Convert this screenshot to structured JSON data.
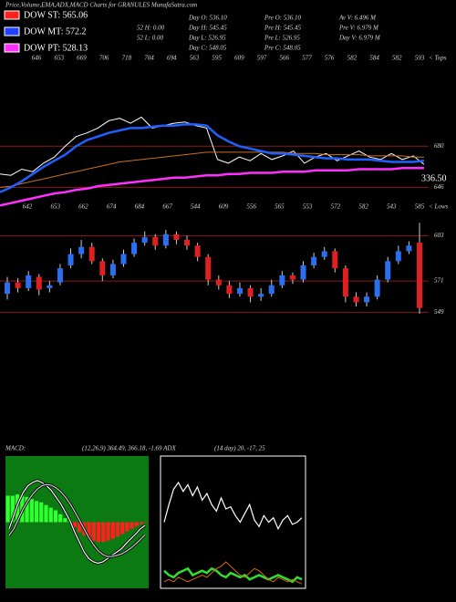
{
  "header": {
    "title": "Price,Volume,EMA,ADX,MACD Charts for GRANULES MunafaSutra.com",
    "legend": [
      {
        "label": "DOW ST: 565.06",
        "color": "#ff2020"
      },
      {
        "label": "DOW MT: 572.2",
        "color": "#2040ff"
      },
      {
        "label": "DOW PT: 528.13",
        "color": "#ff30ff"
      }
    ],
    "stats": [
      [
        "52 H: 0.00",
        "52 L: 0.00"
      ],
      [
        "Day O: 536.10",
        "Day H: 545.45",
        "Day L: 526.95",
        "Day C: 548.05"
      ],
      [
        "Pre O: 536.10",
        "Pre H: 545.45",
        "Pre L: 526.95",
        "Pre C: 548.05"
      ],
      [
        "Av V: 6.496 M",
        "Pre V: 6.979 M",
        "Day V: 6.979 M"
      ]
    ],
    "macd_label": "MACD:",
    "macd_params": "(12,26,9) 364.49, 366.18, -1.69 ADX",
    "adx_params": "(14 day) 20, -17, 25"
  },
  "chart_data": [
    {
      "type": "line",
      "ylim": [
        629,
        748
      ],
      "yticks": [
        646,
        680
      ],
      "tick_color": "#8b1a1a",
      "annotation": "336.50",
      "tops": [
        646,
        653,
        669,
        706,
        718,
        704,
        694,
        563,
        595,
        609,
        597,
        566,
        577,
        576,
        582,
        584,
        582,
        593
      ],
      "tops_label": "< Tops",
      "lows": [
        642,
        653,
        662,
        674,
        684,
        667,
        544,
        609,
        556,
        565,
        553,
        572,
        582,
        543,
        585
      ],
      "lows_label": "< Lows",
      "series": [
        {
          "color": "#ffffff",
          "width": 1,
          "values": [
            657,
            656,
            661,
            659,
            666,
            671,
            680,
            688,
            691,
            695,
            701,
            703,
            699,
            704,
            695,
            697,
            699,
            700,
            697,
            695,
            669,
            666,
            671,
            668,
            674,
            669,
            672,
            676,
            666,
            671,
            674,
            668,
            672,
            676,
            671,
            669,
            674,
            669,
            672,
            665
          ]
        },
        {
          "color": "#c87020",
          "width": 1,
          "values": [
            646,
            647,
            649,
            651,
            653,
            655,
            657,
            659,
            661,
            663,
            665,
            667,
            668,
            669,
            670,
            671,
            672,
            673,
            674,
            675,
            675,
            675,
            675,
            675,
            675,
            675,
            675,
            674,
            674,
            674,
            673,
            673,
            673,
            673,
            672,
            672,
            672,
            672,
            671,
            671
          ]
        },
        {
          "color": "#ff30ff",
          "width": 2.5,
          "values": [
            631,
            633,
            635,
            637,
            639,
            641,
            642,
            644,
            645,
            647,
            648,
            649,
            650,
            651,
            652,
            653,
            654,
            654,
            655,
            656,
            656,
            657,
            657,
            658,
            658,
            658,
            659,
            659,
            659,
            660,
            660,
            660,
            660,
            661,
            661,
            661,
            661,
            662,
            662,
            662
          ]
        },
        {
          "color": "#2060ff",
          "width": 2.5,
          "values": [
            642,
            646,
            651,
            657,
            663,
            668,
            673,
            680,
            685,
            688,
            691,
            693,
            695,
            695,
            696,
            697,
            697,
            698,
            698,
            697,
            689,
            684,
            680,
            678,
            676,
            674,
            674,
            673,
            672,
            671,
            670,
            670,
            669,
            669,
            669,
            668,
            667,
            667,
            667,
            668
          ]
        }
      ]
    },
    {
      "type": "candlestick",
      "ylim": [
        528,
        618
      ],
      "yticks": [
        549,
        571,
        603
      ],
      "tick_color": "#8b1a1a",
      "up_color": "#2a6ff0",
      "down_color": "#e02020",
      "open": [
        562,
        570,
        566,
        574,
        566,
        570,
        582,
        590,
        595,
        585,
        575,
        583,
        590,
        598,
        602,
        596,
        604,
        600,
        596,
        588,
        572,
        568,
        562,
        566,
        560,
        562,
        568,
        575,
        572,
        582,
        588,
        592,
        580,
        560,
        556,
        560,
        572,
        585,
        592,
        598
      ],
      "high": [
        574,
        573,
        578,
        576,
        571,
        583,
        594,
        600,
        598,
        587,
        586,
        593,
        601,
        606,
        604,
        607,
        606,
        603,
        598,
        590,
        575,
        571,
        570,
        568,
        566,
        572,
        578,
        577,
        585,
        591,
        595,
        594,
        582,
        563,
        563,
        575,
        588,
        596,
        599,
        612
      ],
      "low": [
        558,
        563,
        564,
        561,
        563,
        568,
        580,
        587,
        583,
        571,
        573,
        581,
        588,
        596,
        593,
        594,
        597,
        593,
        585,
        568,
        565,
        559,
        560,
        556,
        557,
        560,
        566,
        569,
        570,
        580,
        586,
        577,
        556,
        553,
        553,
        558,
        570,
        583,
        590,
        548
      ],
      "close": [
        570,
        566,
        575,
        565,
        568,
        580,
        590,
        595,
        585,
        575,
        583,
        590,
        598,
        602,
        596,
        604,
        600,
        596,
        588,
        572,
        568,
        562,
        566,
        560,
        562,
        568,
        575,
        572,
        582,
        588,
        592,
        580,
        560,
        556,
        560,
        572,
        585,
        592,
        596,
        552
      ]
    },
    {
      "type": "macd",
      "ylim": [
        -10,
        10
      ],
      "background": "#0b7a12",
      "histogram": {
        "up_color": "#30ff30",
        "down_color": "#ff2020",
        "values": [
          4,
          4,
          4.2,
          4,
          3.8,
          3.5,
          3.2,
          3,
          2.6,
          2.2,
          1.8,
          1.2,
          0.6,
          0.2,
          -0.8,
          -1.5,
          -2,
          -2.5,
          -2.8,
          -3,
          -3,
          -2.8,
          -2.5,
          -2.2,
          -1.8,
          -1.4,
          -1,
          -0.6,
          -0.3,
          -0.1
        ]
      },
      "lines": [
        {
          "color": "#ffffff",
          "values": [
            -1,
            1,
            3,
            4.5,
            5.5,
            6,
            6.3,
            6,
            5.5,
            4.8,
            3.8,
            2.8,
            1.5,
            0.2,
            -1.5,
            -3,
            -4.5,
            -5.5,
            -6,
            -6.2,
            -6,
            -5.5,
            -5,
            -4.5,
            -4,
            -3.2,
            -2.5,
            -1.8,
            -1,
            -0.5
          ]
        },
        {
          "color": "#d0d0d0",
          "values": [
            -2,
            -1,
            0.5,
            2,
            3.2,
            4.2,
            5,
            5.5,
            5.7,
            5.6,
            5.2,
            4.6,
            3.8,
            2.8,
            1.6,
            0.3,
            -1,
            -2.3,
            -3.4,
            -4.3,
            -4.9,
            -5.2,
            -5.2,
            -5,
            -4.8,
            -4.4,
            -3.9,
            -3.3,
            -2.6,
            -1.9
          ]
        }
      ]
    },
    {
      "type": "adx",
      "ylim": [
        0,
        60
      ],
      "background": "#000000",
      "lines": [
        {
          "color": "#ffffff",
          "width": 1.2,
          "values": [
            30,
            38,
            45,
            48,
            44,
            47,
            42,
            46,
            40,
            43,
            38,
            35,
            41,
            36,
            37,
            33,
            30,
            34,
            38,
            31,
            28,
            33,
            30,
            32,
            27,
            31,
            33,
            29,
            30,
            32
          ]
        },
        {
          "color": "#30e030",
          "width": 2.5,
          "values": [
            8,
            6,
            5,
            7,
            8,
            9,
            6,
            7,
            8,
            7,
            9,
            8,
            6,
            5,
            7,
            6,
            5,
            6,
            4,
            5,
            6,
            5,
            4,
            5,
            6,
            5,
            4,
            3,
            5,
            4
          ]
        },
        {
          "color": "#d06a10",
          "width": 1,
          "values": [
            3,
            4,
            3,
            5,
            4,
            3,
            4,
            5,
            6,
            5,
            7,
            9,
            10,
            12,
            10,
            8,
            6,
            5,
            7,
            9,
            8,
            6,
            4,
            3,
            5,
            4,
            3,
            4,
            3,
            2
          ]
        }
      ]
    }
  ]
}
